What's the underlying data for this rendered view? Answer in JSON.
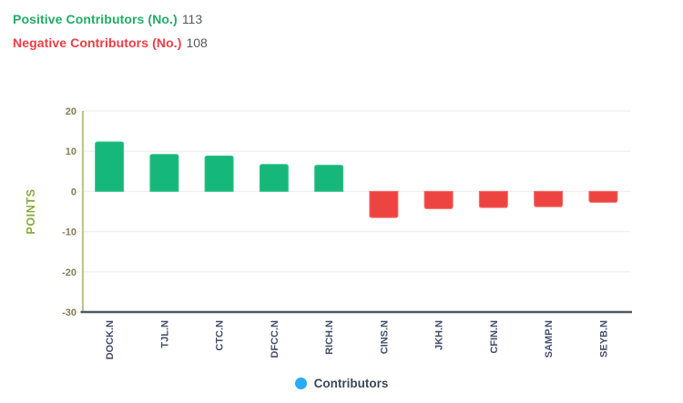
{
  "header": {
    "positive_label": "Positive Contributors (No.)",
    "positive_value": "113",
    "negative_label": "Negative Contributors (No.)",
    "negative_value": "108"
  },
  "chart_data": {
    "type": "bar",
    "title": "",
    "xlabel": "",
    "ylabel": "POINTS",
    "categories": [
      "DOCK.N",
      "TJL.N",
      "CTC.N",
      "DFCC.N",
      "RICH.N",
      "CINS.N",
      "JKH.N",
      "CFIN.N",
      "SAMP.N",
      "SEYB.N"
    ],
    "values": [
      12.3,
      9.2,
      8.8,
      6.7,
      6.5,
      -6.5,
      -4.3,
      -4.0,
      -3.8,
      -2.7
    ],
    "ylim": [
      -30,
      20
    ],
    "yticks": [
      20,
      10,
      0,
      -10,
      -20,
      -30
    ],
    "grid": true,
    "legend": {
      "label": "Contributors",
      "position": "bottom"
    },
    "colors": {
      "positive_bar": "#15b87a",
      "positive_bar_stroke": "#36c38c",
      "negative_bar": "#ee4441",
      "negative_bar_stroke": "#f26a64",
      "legend_marker": "#2aabf2",
      "ylabel_text": "#8aa93e",
      "tick_text": "#7f7f55",
      "xtick_text": "#44506b",
      "y_axis_line": "#b8c88e",
      "x_axis_line": "#53585c",
      "gridline": "#f0f0f0"
    }
  }
}
